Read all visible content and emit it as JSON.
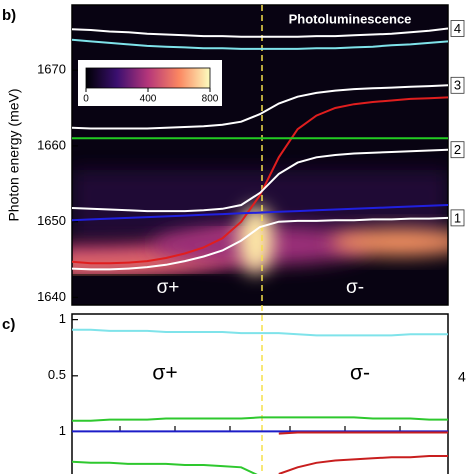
{
  "chart_data": [
    {
      "type": "line",
      "panel_label": "b)",
      "y_label": "Photon energy (meV)",
      "annotations": [
        "Photoluminescence",
        "σ+",
        "σ-"
      ],
      "ylim": [
        1639,
        1678.6
      ],
      "yticks": [
        1640,
        1650,
        1660,
        1670
      ],
      "colorbar": {
        "lim": [
          0,
          800
        ],
        "ticks": [
          0,
          400,
          800
        ]
      },
      "series": [
        {
          "name": "4",
          "color": "#ffffff",
          "values": [
            1675.4,
            1675.3,
            1675.1,
            1675,
            1674.8,
            1674.7,
            1674.6,
            1674.5,
            1674.5,
            1674.4,
            1674.4,
            1674.4,
            1674.4,
            1674.5,
            1674.5,
            1674.6,
            1674.7,
            1674.8,
            1675,
            1675.2,
            1675.5
          ]
        },
        {
          "color": "#7fe3ea",
          "values": [
            1674,
            1673.8,
            1673.6,
            1673.4,
            1673.2,
            1673.1,
            1673,
            1672.9,
            1672.9,
            1672.8,
            1672.8,
            1672.8,
            1672.8,
            1672.9,
            1672.9,
            1673,
            1673.1,
            1673.3,
            1673.4,
            1673.6,
            1673.8
          ]
        },
        {
          "name": "3",
          "color": "#ffffff",
          "values": [
            1662.4,
            1662.3,
            1662.3,
            1662.3,
            1662.3,
            1662.4,
            1662.5,
            1662.6,
            1662.8,
            1663.2,
            1664.2,
            1665.6,
            1666.5,
            1667,
            1667.3,
            1667.5,
            1667.6,
            1667.7,
            1667.8,
            1667.9,
            1668
          ]
        },
        {
          "color": "#e01e1e",
          "values": [
            1644.7,
            1644.5,
            1644.5,
            1644.6,
            1644.8,
            1645.2,
            1645.8,
            1646.6,
            1647.8,
            1650,
            1653.5,
            1658.5,
            1662.2,
            1664,
            1665,
            1665.5,
            1665.8,
            1666,
            1666.2,
            1666.3,
            1666.4
          ]
        },
        {
          "color": "#22cc22",
          "values": [
            1661,
            1661,
            1661,
            1661,
            1661,
            1661,
            1661,
            1661,
            1661,
            1661,
            1661,
            1661,
            1661,
            1661,
            1661,
            1661,
            1661,
            1661,
            1661,
            1661,
            1661
          ]
        },
        {
          "name": "2",
          "color": "#ffffff",
          "values": [
            1651.8,
            1651.7,
            1651.6,
            1651.5,
            1651.4,
            1651.4,
            1651.4,
            1651.5,
            1651.7,
            1652.2,
            1653.8,
            1656.3,
            1657.8,
            1658.5,
            1658.8,
            1659,
            1659.1,
            1659.2,
            1659.3,
            1659.4,
            1659.5
          ]
        },
        {
          "color": "#2020e0",
          "values": [
            1650.2,
            1650.3,
            1650.4,
            1650.5,
            1650.6,
            1650.7,
            1650.8,
            1650.9,
            1651,
            1651.1,
            1651.2,
            1651.3,
            1651.4,
            1651.5,
            1651.6,
            1651.7,
            1651.8,
            1651.9,
            1652,
            1652.1,
            1652.2
          ]
        },
        {
          "name": "1",
          "color": "#ffffff",
          "values": [
            1643.8,
            1643.7,
            1643.7,
            1643.8,
            1644,
            1644.3,
            1644.8,
            1645.4,
            1646.2,
            1647.5,
            1649.3,
            1650,
            1650.1,
            1650.1,
            1650.2,
            1650.2,
            1650.3,
            1650.3,
            1650.4,
            1650.4,
            1650.5
          ]
        }
      ]
    },
    {
      "type": "line",
      "panel_label": "c)",
      "annotations": [
        "σ+",
        "σ-",
        "4"
      ],
      "ylim": [
        0,
        1.05
      ],
      "yticks": [
        0.5,
        1
      ],
      "series": [
        {
          "color": "#7fe3ea",
          "values": [
            0.91,
            0.91,
            0.9,
            0.9,
            0.9,
            0.89,
            0.89,
            0.89,
            0.89,
            0.88,
            0.88,
            0.88,
            0.87,
            0.86,
            0.86,
            0.86,
            0.86,
            0.86,
            0.87,
            0.87,
            0.87
          ]
        },
        {
          "color": "#2ec82e",
          "values": [
            0.1,
            0.1,
            0.11,
            0.11,
            0.11,
            0.12,
            0.12,
            0.12,
            0.12,
            0.12,
            0.13,
            0.13,
            0.13,
            0.13,
            0.13,
            0.13,
            0.12,
            0.12,
            0.12,
            0.11,
            0.11
          ]
        }
      ]
    },
    {
      "type": "line",
      "ylim": [
        0.62,
        1.03
      ],
      "yticks": [
        1
      ],
      "series": [
        {
          "color": "#1c1cc8",
          "values": [
            1,
            1,
            1,
            1,
            1,
            1,
            1,
            1,
            1,
            1,
            1,
            1,
            1,
            1,
            1,
            1,
            1,
            1,
            1,
            1,
            1
          ]
        },
        {
          "color": "#c81e1e",
          "values": [
            null,
            null,
            null,
            null,
            null,
            null,
            null,
            null,
            null,
            null,
            null,
            0.98,
            0.99,
            0.99,
            0.99,
            0.99,
            0.99,
            0.99,
            0.99,
            0.99,
            0.99
          ]
        },
        {
          "color": "#2ec82e",
          "values": [
            0.73,
            0.72,
            0.72,
            0.71,
            0.71,
            0.71,
            0.7,
            0.7,
            0.69,
            0.68,
            0.6,
            null,
            null,
            null,
            null,
            null,
            null,
            null,
            null,
            null,
            null
          ]
        },
        {
          "color": "#c81e1e",
          "values": [
            null,
            null,
            null,
            null,
            null,
            null,
            null,
            null,
            null,
            null,
            null,
            0.62,
            0.68,
            0.72,
            0.74,
            0.75,
            0.76,
            0.77,
            0.77,
            0.78,
            0.78
          ]
        }
      ]
    }
  ]
}
